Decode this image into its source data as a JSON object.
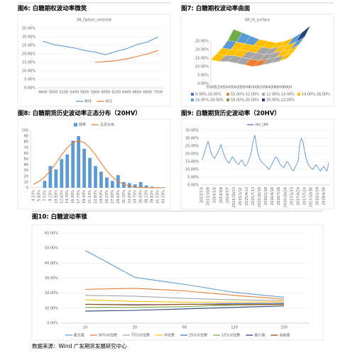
{
  "source": "数据来源：Wind 广发期货发展研究中心",
  "chart_data": [
    {
      "type": "line",
      "caption": "图6: 白糖期权波动率微笑",
      "title": "SR_Option_volsmile",
      "categories": [
        "4800",
        "5000",
        "5200",
        "5400",
        "5600",
        "5800",
        "6000",
        "6200",
        "6400",
        "6600",
        "6800",
        "7000"
      ],
      "series": [
        {
          "name": "809",
          "color": "#5b9bd5",
          "values": [
            27.5,
            25.5,
            24.5,
            23.5,
            22.0,
            21.0,
            19.5,
            21.5,
            23.0,
            25.5,
            27.0,
            30.0
          ]
        },
        {
          "name": "901",
          "color": "#ed7d31",
          "values": [
            null,
            null,
            null,
            null,
            null,
            15.0,
            15.5,
            16.0,
            17.0,
            18.5,
            20.0,
            22.0
          ]
        }
      ],
      "ylim": [
        0,
        35
      ],
      "yticks": [
        {
          "value": 0,
          "label": "0.00%"
        },
        {
          "value": 5,
          "label": "5.00%"
        },
        {
          "value": 10,
          "label": "10.00%"
        },
        {
          "value": 15,
          "label": "15.00%"
        },
        {
          "value": 20,
          "label": "20.00%"
        },
        {
          "value": 25,
          "label": "25.00%"
        },
        {
          "value": 30,
          "label": "30.00%"
        },
        {
          "value": 35,
          "label": "35.00%"
        }
      ],
      "grid": true,
      "legend": "bottom"
    },
    {
      "type": "surface",
      "caption": "图7: 白糖期权波动率曲面",
      "title": "SR_IV_surface",
      "strikes": [
        "5000",
        "5200",
        "5400",
        "5600",
        "5800",
        "6000",
        "6200",
        "6400",
        "6600",
        "6800"
      ],
      "z": [
        [
          22,
          20,
          18,
          16,
          15,
          14,
          15,
          17,
          20,
          24
        ],
        [
          18,
          17,
          16,
          15,
          14,
          13,
          14,
          15,
          17,
          20
        ],
        [
          16,
          15,
          15,
          14,
          13,
          12,
          13,
          14,
          15,
          18
        ],
        [
          15,
          14,
          14,
          13,
          12,
          11,
          12,
          13,
          14,
          16
        ],
        [
          14,
          13,
          13,
          12,
          11,
          10,
          11,
          12,
          13,
          15
        ]
      ],
      "zlim": [
        0,
        25
      ],
      "zticks": [
        {
          "value": 0,
          "label": "0.00%"
        },
        {
          "value": 5,
          "label": "5.00%"
        },
        {
          "value": 10,
          "label": "10.00%"
        },
        {
          "value": 15,
          "label": "15.00%"
        },
        {
          "value": 20,
          "label": "20.00%"
        },
        {
          "value": 25,
          "label": "25.00%"
        }
      ],
      "bands": [
        {
          "from": 0,
          "to": 10,
          "label": "0.00%-10.00%",
          "color": "#4472c4"
        },
        {
          "from": 10,
          "to": 12,
          "label": "10.00%-12.00%",
          "color": "#ed7d31"
        },
        {
          "from": 12,
          "to": 14,
          "label": "12.00%-14.00%",
          "color": "#a5a5a5"
        },
        {
          "from": 14,
          "to": 16,
          "label": "14.00%-16.00%",
          "color": "#ffc000"
        },
        {
          "from": 16,
          "to": 18,
          "label": "16.00%-18.00%",
          "color": "#5b9bd5"
        },
        {
          "from": 18,
          "to": 20,
          "label": "18.00%-20.00%",
          "color": "#70ad47"
        },
        {
          "from": 20,
          "to": 22,
          "label": "20.00%-22.00%",
          "color": "#264478"
        }
      ]
    },
    {
      "type": "combo",
      "caption": "图8: 白糖期货历史波动率正态分布（20HV）",
      "categories": [
        "4.13%",
        "5.83%",
        "7.53%",
        "9.23%",
        "10.93%",
        "12.63%",
        "14.33%",
        "16.03%",
        "17.73%",
        "19.43%",
        "21.13%",
        "22.83%",
        "24.53%",
        "26.23%",
        "27.93%",
        "29.63%",
        "31.33%",
        "33.03%",
        "34.73%",
        "36.43%",
        "38.13%",
        "39.83%",
        "41.53%",
        "43.23%"
      ],
      "series": [
        {
          "name": "频率",
          "type": "bar",
          "color": "#5b9bd5",
          "values": [
            0,
            0,
            12,
            38,
            32,
            50,
            58,
            82,
            90,
            68,
            52,
            38,
            28,
            18,
            12,
            22,
            10,
            8,
            6,
            10,
            4,
            2,
            1,
            1
          ]
        },
        {
          "name": "正态分布",
          "type": "line",
          "color": "#ed7d31",
          "values": [
            6.0,
            11.0,
            18.7,
            29.6,
            42.8,
            57.3,
            69.9,
            78.8,
            82.0,
            78.8,
            69.9,
            57.3,
            42.8,
            29.6,
            18.7,
            11.0,
            6.0,
            3.0,
            1.4,
            0.6,
            0.2,
            0.1,
            0,
            0
          ]
        }
      ],
      "ylim": [
        0,
        100
      ],
      "yticks": [
        0,
        10,
        20,
        30,
        40,
        50,
        60,
        70,
        80,
        90,
        100
      ],
      "grid": false,
      "legend": "top"
    },
    {
      "type": "line",
      "caption": "图9: 白糖期货历史波动率（20HV）",
      "categories": [
        "2013/7/4",
        null,
        null,
        null,
        "2013/10/8",
        null,
        null,
        null,
        "2014/1/6",
        null,
        null,
        null,
        "2014/4/8",
        null,
        null,
        null,
        "2014/7/7",
        null,
        null,
        null,
        "2014/10/13",
        null,
        null,
        null,
        "2015/1/12",
        null,
        null,
        null,
        "2015/4/13",
        null,
        null,
        null,
        "2015/7/13",
        null,
        null,
        null,
        "2015/10/19",
        null,
        null,
        null,
        "2016/1/18",
        null,
        null,
        null,
        "2016/4/18",
        null,
        null,
        null,
        "2016/7/18",
        null,
        null,
        null,
        "2016/10/24",
        null,
        null,
        null,
        "2017/1/23",
        null,
        null,
        null,
        "2017/4/24",
        null,
        null,
        null,
        "2017/7/24",
        null,
        null,
        null,
        "2017/10/30",
        null,
        null,
        null,
        "2018/1/29",
        null,
        null,
        null,
        "2018/4/30",
        null,
        null,
        null
      ],
      "series": [
        {
          "name": "HV_UM",
          "color": "#4a86c5",
          "values": [
            16,
            18,
            22,
            25,
            28,
            24,
            20,
            18,
            17,
            19,
            21,
            23,
            26,
            22,
            19,
            17,
            15,
            14,
            16,
            18,
            17,
            15,
            14,
            13,
            15,
            16,
            14,
            12,
            13,
            15,
            18,
            22,
            28,
            32,
            26,
            20,
            17,
            15,
            14,
            13,
            12,
            11,
            10,
            12,
            14,
            16,
            18,
            17,
            15,
            13,
            12,
            11,
            13,
            15,
            14,
            12,
            10,
            9,
            11,
            13,
            15,
            26,
            30,
            28,
            22,
            17,
            14,
            12,
            11,
            10,
            11,
            13,
            12,
            10,
            9,
            11,
            12,
            10,
            9,
            14
          ]
        }
      ],
      "ylim": [
        0,
        35
      ],
      "yticks": [
        {
          "value": 0,
          "label": "0.00%"
        },
        {
          "value": 5,
          "label": "5.00%"
        },
        {
          "value": 10,
          "label": "10.00%"
        },
        {
          "value": 15,
          "label": "15.00%"
        },
        {
          "value": 20,
          "label": "20.00%"
        },
        {
          "value": 25,
          "label": "25.00%"
        },
        {
          "value": 30,
          "label": "30.00%"
        },
        {
          "value": 35,
          "label": "35.00%"
        }
      ],
      "grid": true,
      "legend": "top"
    },
    {
      "type": "line",
      "caption": "图10: 白糖波动率锥",
      "categories": [
        "10",
        "20",
        "60",
        "120",
        "250"
      ],
      "series": [
        {
          "name": "最大值",
          "color": "#5b9bd5",
          "values": [
            48.5,
            30.5,
            25.8,
            20.5,
            17.3
          ]
        },
        {
          "name": "90%分位数",
          "color": "#ed7d31",
          "values": [
            22.5,
            23.2,
            21.5,
            18.5,
            16.0
          ]
        },
        {
          "name": "75%分位数",
          "color": "#a5a5a5",
          "values": [
            18.5,
            18.0,
            16.5,
            15.5,
            15.0
          ]
        },
        {
          "name": "中位数",
          "color": "#ffc000",
          "values": [
            15.5,
            14.5,
            14.0,
            14.0,
            14.2
          ]
        },
        {
          "name": "25%分位数",
          "color": "#4472c4",
          "values": [
            12.5,
            12.3,
            12.5,
            13.0,
            13.2
          ]
        },
        {
          "name": "10%分位数",
          "color": "#70ad47",
          "values": [
            10.5,
            10.5,
            11.0,
            12.0,
            12.5
          ]
        },
        {
          "name": "最小值",
          "color": "#264478",
          "values": [
            8.0,
            8.5,
            9.5,
            10.5,
            11.5
          ]
        },
        {
          "name": "当前值",
          "color": "#9e480e",
          "values": [
            12.6,
            12.0,
            12.6,
            12.3,
            12.6
          ]
        }
      ],
      "ylim": [
        0,
        60
      ],
      "yticks": [
        {
          "value": 0,
          "label": "0.00%"
        },
        {
          "value": 10,
          "label": "10.00%"
        },
        {
          "value": 20,
          "label": "20.00%"
        },
        {
          "value": 30,
          "label": "30.00%"
        },
        {
          "value": 40,
          "label": "40.00%"
        },
        {
          "value": 50,
          "label": "50.00%"
        },
        {
          "value": 60,
          "label": "60.00%"
        }
      ],
      "grid": true,
      "legend": "bottom"
    }
  ]
}
